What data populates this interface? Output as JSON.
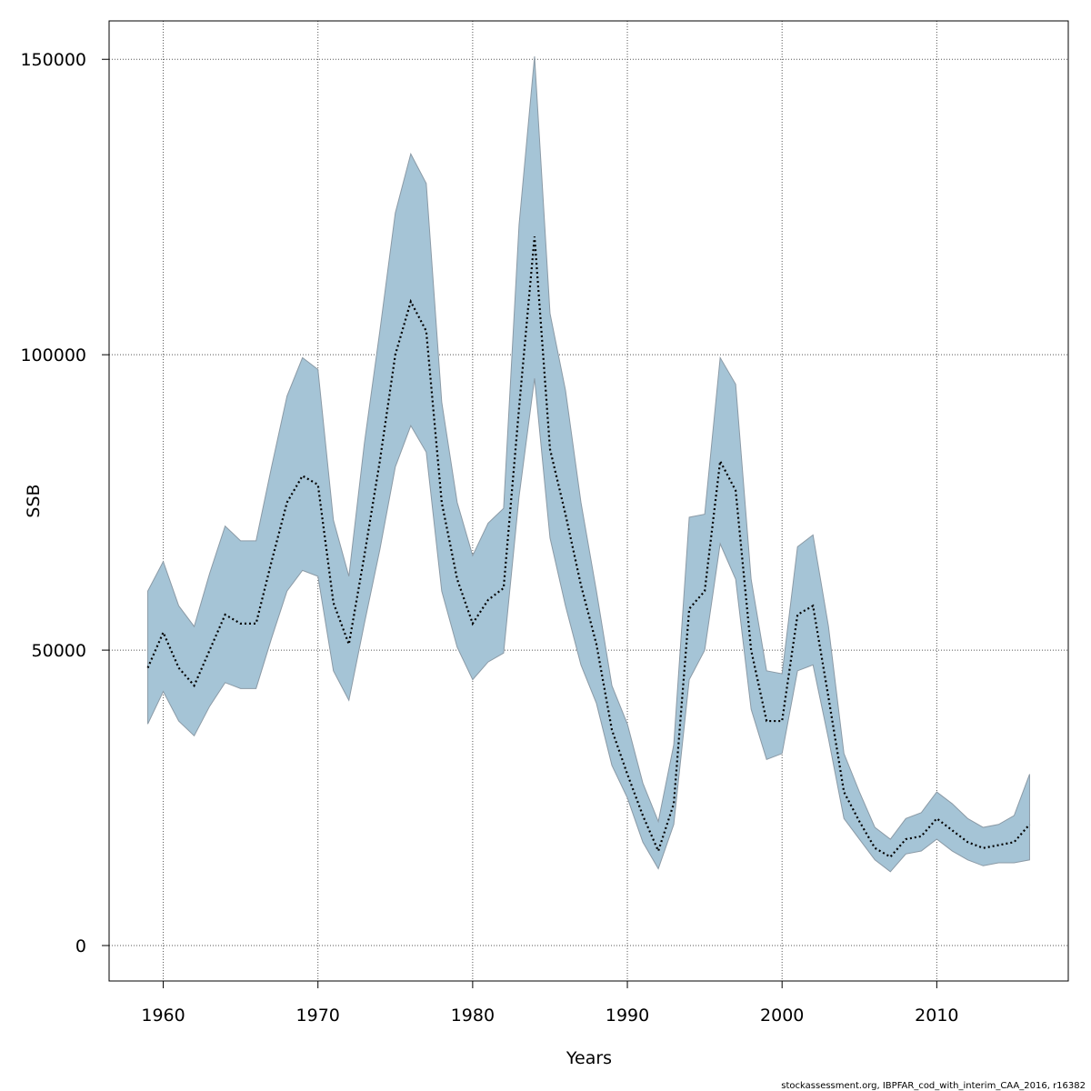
{
  "chart_data": {
    "type": "area",
    "title": "",
    "xlabel": "Years",
    "ylabel": "SSB",
    "xlim": [
      1956.5,
      2018.5
    ],
    "ylim": [
      -6000,
      156500
    ],
    "x_ticks": [
      1960,
      1970,
      1980,
      1990,
      2000,
      2010
    ],
    "y_ticks": [
      0,
      50000,
      100000,
      150000
    ],
    "grid": true,
    "colors": {
      "band": "#a5c4d6",
      "band_edge": "#8b9aa6",
      "line": "#000000",
      "grid": "#555555"
    },
    "x": [
      1959,
      1960,
      1961,
      1962,
      1963,
      1964,
      1965,
      1966,
      1967,
      1968,
      1969,
      1970,
      1971,
      1972,
      1973,
      1974,
      1975,
      1976,
      1977,
      1978,
      1979,
      1980,
      1981,
      1982,
      1983,
      1984,
      1985,
      1986,
      1987,
      1988,
      1989,
      1990,
      1991,
      1992,
      1993,
      1994,
      1995,
      1996,
      1997,
      1998,
      1999,
      2000,
      2001,
      2002,
      2003,
      2004,
      2005,
      2006,
      2007,
      2008,
      2009,
      2010,
      2011,
      2012,
      2013,
      2014,
      2015,
      2016
    ],
    "series": [
      {
        "values": [
          47000,
          53000,
          47000,
          44000,
          50000,
          56000,
          54500,
          54500,
          65000,
          75000,
          79500,
          78000,
          58000,
          51000,
          66000,
          82000,
          100000,
          109000,
          104000,
          75000,
          62000,
          54500,
          58500,
          60500,
          91000,
          120000,
          84000,
          73000,
          61000,
          51000,
          36500,
          29000,
          22000,
          16000,
          24000,
          57000,
          60000,
          82000,
          77000,
          50000,
          38000,
          38000,
          56000,
          57500,
          42000,
          26000,
          21000,
          16500,
          15000,
          18000,
          18500,
          21500,
          19500,
          17500,
          16500,
          17000,
          17500,
          20500
        ]
      },
      {
        "name": "upper",
        "values": [
          60000,
          65000,
          57500,
          54000,
          63000,
          71000,
          68500,
          68500,
          81000,
          93000,
          99500,
          97500,
          72000,
          62500,
          85000,
          104000,
          124000,
          134000,
          129000,
          92000,
          75000,
          66000,
          71500,
          74000,
          122000,
          150500,
          107000,
          94000,
          75000,
          60000,
          44000,
          37500,
          27500,
          21000,
          34000,
          72500,
          73000,
          99500,
          95000,
          62000,
          46500,
          46000,
          67500,
          69500,
          54000,
          32500,
          26000,
          20000,
          18000,
          21500,
          22500,
          26000,
          24000,
          21500,
          20000,
          20500,
          22000,
          29000
        ]
      },
      {
        "name": "lower",
        "values": [
          37500,
          43000,
          38000,
          35500,
          40500,
          44500,
          43500,
          43500,
          52000,
          60000,
          63500,
          62500,
          46500,
          41500,
          54500,
          67000,
          81000,
          88000,
          83500,
          60000,
          50500,
          45000,
          48000,
          49500,
          76000,
          96000,
          69000,
          57500,
          47500,
          41000,
          30500,
          25000,
          17500,
          13000,
          20500,
          45000,
          50000,
          68000,
          62000,
          40000,
          31500,
          32500,
          46500,
          47500,
          35000,
          21500,
          18000,
          14500,
          12500,
          15500,
          16000,
          18000,
          16000,
          14500,
          13500,
          14000,
          14000,
          14500
        ]
      }
    ]
  },
  "footer": "stockassessment.org, IBPFAR_cod_with_interim_CAA_2016, r16382"
}
